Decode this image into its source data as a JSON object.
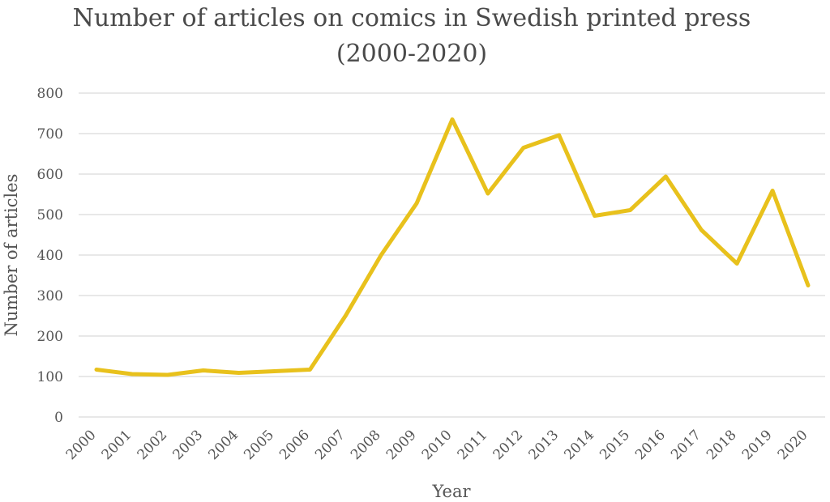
{
  "chart_data": {
    "type": "line",
    "title_line1": "Number of articles on comics in Swedish printed press",
    "title_line2": "(2000-2020)",
    "xlabel": "Year",
    "ylabel": "Number of articles",
    "categories": [
      "2000",
      "2001",
      "2002",
      "2003",
      "2004",
      "2005",
      "2006",
      "2007",
      "2008",
      "2009",
      "2010",
      "2011",
      "2012",
      "2013",
      "2014",
      "2015",
      "2016",
      "2017",
      "2018",
      "2019",
      "2020"
    ],
    "series": [
      {
        "values": [
          117,
          106,
          104,
          115,
          109,
          113,
          117,
          250,
          400,
          528,
          735,
          552,
          665,
          696,
          497,
          511,
          594,
          462,
          379,
          559,
          325
        ],
        "color": "#e8c11c"
      }
    ],
    "ylim": [
      0,
      800
    ],
    "yticks": [
      "0",
      "100",
      "200",
      "300",
      "400",
      "500",
      "600",
      "700",
      "800"
    ],
    "grid": true,
    "legend": "none"
  }
}
